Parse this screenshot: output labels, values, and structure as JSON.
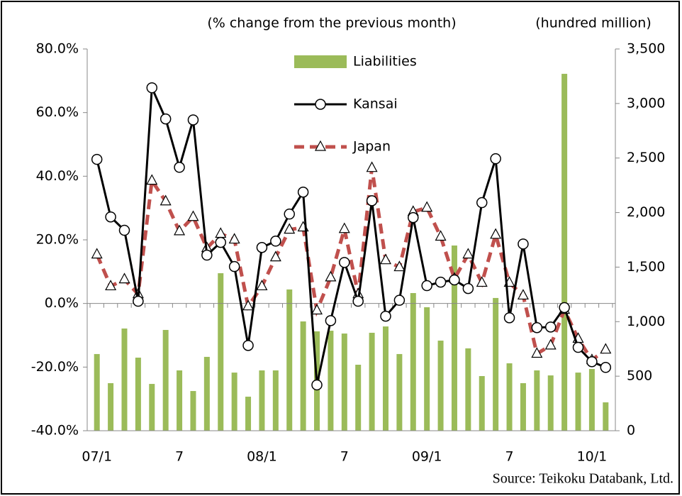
{
  "chart_data": {
    "type": "bar-line",
    "left_label": "(% change from the previous month)",
    "right_label": "(hundred million)",
    "source": "Source: Teikoku Databank, Ltd.",
    "categories": [
      "07/1",
      null,
      null,
      null,
      null,
      null,
      "7",
      null,
      null,
      null,
      null,
      null,
      "08/1",
      null,
      null,
      null,
      null,
      null,
      "7",
      null,
      null,
      null,
      null,
      null,
      "09/1",
      null,
      null,
      null,
      null,
      null,
      "7",
      null,
      null,
      null,
      null,
      null,
      "10/1",
      null
    ],
    "ylim": [
      -40,
      80
    ],
    "yticks": [
      {
        "value": -40,
        "label": "-40.0%"
      },
      {
        "value": -20,
        "label": "-20.0%"
      },
      {
        "value": 0,
        "label": "0.0%"
      },
      {
        "value": 20,
        "label": "20.0%"
      },
      {
        "value": 40,
        "label": "40.0%"
      },
      {
        "value": 60,
        "label": "60.0%"
      },
      {
        "value": 80,
        "label": "80.0%"
      }
    ],
    "y2lim": [
      0,
      3500
    ],
    "y2ticks": [
      0,
      500,
      {
        "value": 1000,
        "label": "1,000"
      },
      {
        "value": 1500,
        "label": "1,500"
      },
      {
        "value": 2000,
        "label": "2,000"
      },
      {
        "value": 2500,
        "label": "2,500"
      },
      {
        "value": 3000,
        "label": "3,000"
      },
      {
        "value": 3500,
        "label": "3,500"
      }
    ],
    "series": [
      {
        "name": "Liabilities",
        "type": "bar",
        "axis": "y2",
        "color": "#9bbb59",
        "values": [
          703,
          436,
          937,
          670,
          429,
          924,
          553,
          364,
          677,
          1444,
          533,
          312,
          553,
          553,
          1295,
          1002,
          911,
          917,
          891,
          605,
          898,
          956,
          703,
          1262,
          1132,
          826,
          1698,
          755,
          501,
          1217,
          618,
          436,
          553,
          507,
          3272,
          533,
          566,
          260
        ]
      },
      {
        "name": "Kansai",
        "type": "line",
        "color": "#000000",
        "marker": "circle",
        "dashed": false,
        "values": [
          45.3,
          27.2,
          23.0,
          0.7,
          67.8,
          58.0,
          42.8,
          57.7,
          15.2,
          19.2,
          11.6,
          -13.2,
          17.6,
          19.6,
          28.1,
          35.0,
          -25.6,
          -5.4,
          12.9,
          0.7,
          32.3,
          -4.0,
          1.0,
          27.0,
          5.6,
          6.7,
          7.4,
          4.7,
          31.7,
          45.5,
          -4.5,
          18.7,
          -7.6,
          -7.4,
          -1.3,
          -13.8,
          -18.3,
          -20.1
        ]
      },
      {
        "name": "Japan",
        "type": "line",
        "color": "#c0504d",
        "marker": "triangle",
        "dashed": true,
        "values": [
          15.4,
          5.4,
          7.6,
          2.9,
          38.6,
          32.1,
          22.7,
          27.2,
          17.4,
          21.9,
          20.1,
          -0.9,
          5.4,
          14.5,
          23.2,
          23.9,
          -2.2,
          8.2,
          23.4,
          2.9,
          42.6,
          13.6,
          11.4,
          28.8,
          30.1,
          21.0,
          7.8,
          15.4,
          6.5,
          21.6,
          6.5,
          2.5,
          -15.8,
          -13.2,
          -2.0,
          -11.1,
          -17.8,
          -14.5
        ]
      }
    ]
  }
}
